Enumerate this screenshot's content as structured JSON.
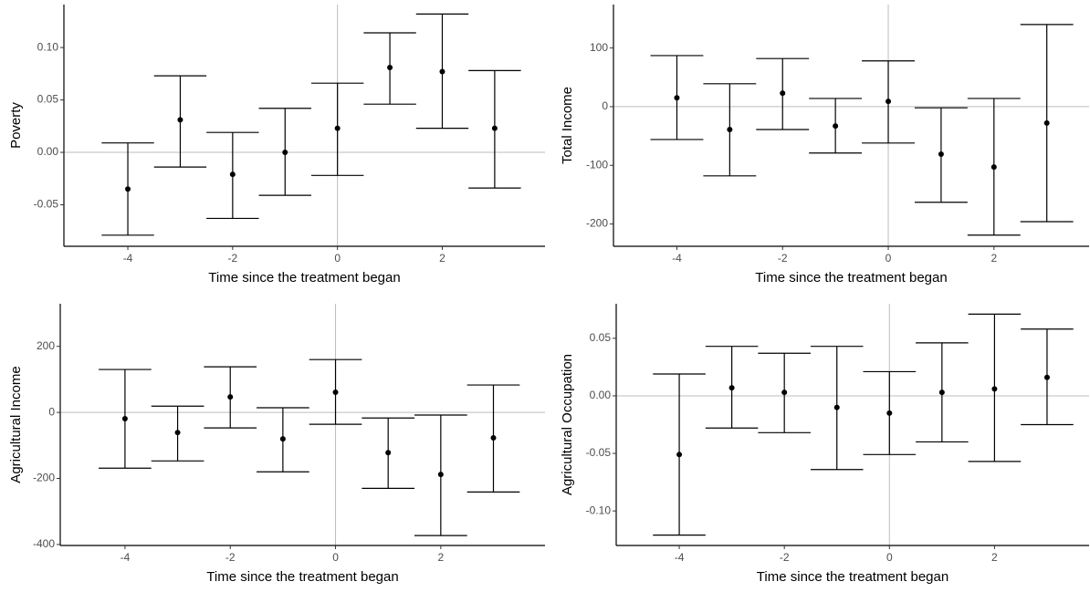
{
  "chart_data": [
    {
      "type": "errorbar",
      "ylabel": "Poverty",
      "xlabel": "Time since the treatment began",
      "x": [
        -4,
        -3,
        -2,
        -1,
        0,
        1,
        2,
        3
      ],
      "values": [
        -0.035,
        0.031,
        -0.021,
        0.0,
        0.023,
        0.081,
        0.077,
        0.023
      ],
      "lower": [
        -0.079,
        -0.014,
        -0.063,
        -0.041,
        -0.022,
        0.046,
        0.023,
        -0.034
      ],
      "upper": [
        0.009,
        0.073,
        0.019,
        0.042,
        0.066,
        0.114,
        0.132,
        0.078
      ],
      "color": "#000000",
      "xlim": [
        -5.22,
        3.96
      ],
      "ylim": [
        -0.0896,
        0.141
      ],
      "xticks": [
        -4,
        -2,
        0,
        2
      ],
      "yticks": [
        -0.05,
        {
          "value": 0,
          "label": "0.00"
        },
        0.05,
        {
          "value": 0.1,
          "label": "0.10"
        }
      ],
      "hline": 0,
      "vline": 0
    },
    {
      "type": "errorbar",
      "ylabel": "Total Income",
      "xlabel": "Time since the treatment began",
      "x": [
        -4,
        -3,
        -2,
        -1,
        0,
        1,
        2,
        3
      ],
      "values": [
        15,
        -39,
        23,
        -33,
        9,
        -81,
        -103,
        -28
      ],
      "lower": [
        -56,
        -118,
        -39,
        -79,
        -62,
        -163,
        -219,
        -196
      ],
      "upper": [
        87,
        39,
        82,
        14,
        78,
        -2,
        14,
        140
      ],
      "color": "#000000",
      "xlim": [
        -5.2,
        3.8
      ],
      "ylim": [
        -238,
        174
      ],
      "xticks": [
        -4,
        -2,
        0,
        2
      ],
      "yticks": [
        -200,
        -100,
        0,
        100
      ],
      "hline": 0,
      "vline": 0
    },
    {
      "type": "errorbar",
      "ylabel": "Agricultural Income",
      "xlabel": "Time since the treatment began",
      "x": [
        -4,
        -3,
        -2,
        -1,
        0,
        1,
        2,
        3
      ],
      "values": [
        -19,
        -61,
        47,
        -80,
        61,
        -122,
        -188,
        -77
      ],
      "lower": [
        -169,
        -147,
        -47,
        -180,
        -36,
        -230,
        -373,
        -241
      ],
      "upper": [
        130,
        19,
        138,
        14,
        160,
        -17,
        -8,
        83
      ],
      "color": "#000000",
      "xlim": [
        -5.23,
        3.98
      ],
      "ylim": [
        -403,
        329
      ],
      "xticks": [
        -4,
        -2,
        0,
        2
      ],
      "yticks": [
        -400,
        -200,
        0,
        200
      ],
      "hline": 0,
      "vline": 0
    },
    {
      "type": "errorbar",
      "ylabel": "Agricultural Occupation",
      "xlabel": "Time since the treatment began",
      "x": [
        -4,
        -3,
        -2,
        -1,
        0,
        1,
        2,
        3
      ],
      "values": [
        -0.051,
        0.007,
        0.003,
        -0.01,
        -0.015,
        0.003,
        0.006,
        0.016
      ],
      "lower": [
        -0.121,
        -0.028,
        -0.032,
        -0.064,
        -0.051,
        -0.04,
        -0.057,
        -0.025
      ],
      "upper": [
        0.019,
        0.043,
        0.037,
        0.043,
        0.021,
        0.046,
        0.071,
        0.058
      ],
      "color": "#000000",
      "xlim": [
        -5.2,
        3.8
      ],
      "ylim": [
        -0.13,
        0.08
      ],
      "xticks": [
        -4,
        -2,
        0,
        2
      ],
      "yticks": [
        {
          "value": -0.1,
          "label": "-0.10"
        },
        -0.05,
        {
          "value": 0,
          "label": "0.00"
        },
        0.05
      ],
      "hline": 0,
      "vline": 0
    }
  ]
}
